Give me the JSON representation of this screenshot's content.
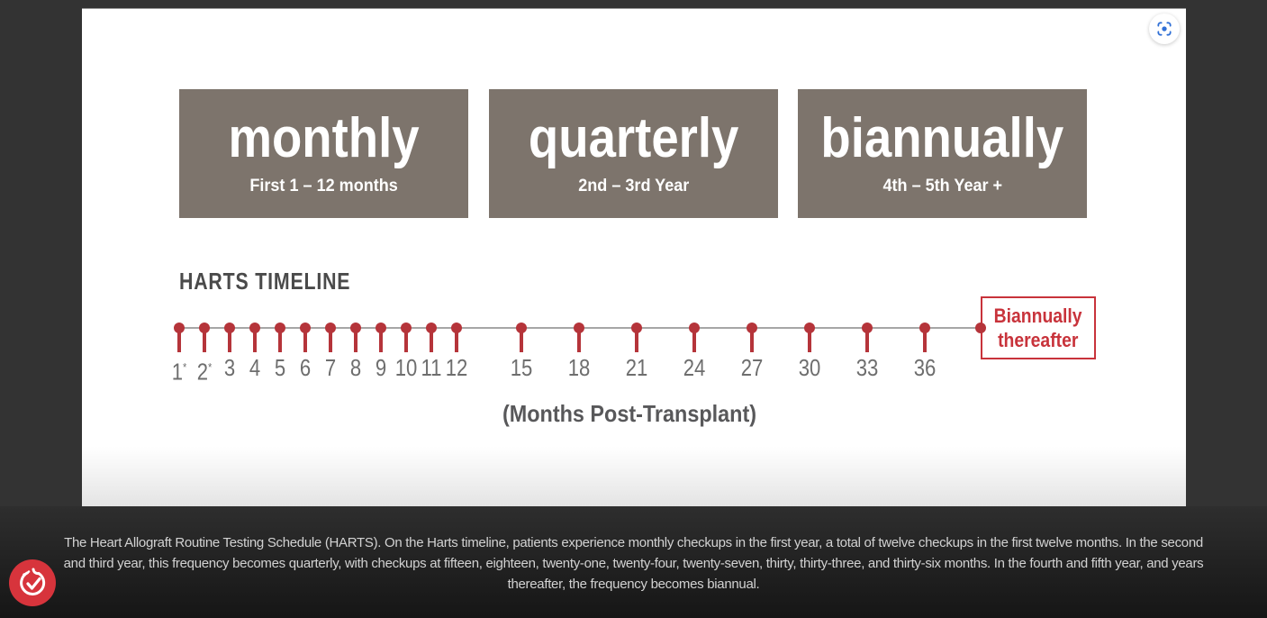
{
  "colors": {
    "page_bg": "#333333",
    "panel_bg": "#ffffff",
    "box_bg": "#7d746c",
    "accent_red": "#b5343a",
    "accent_red_bright": "#c8333b",
    "scan_icon_blue": "#2f6fd6",
    "cookie_badge_red": "#d7343c"
  },
  "frequency_boxes": [
    {
      "title": "monthly",
      "subtitle": "First 1 – 12 months"
    },
    {
      "title": "quarterly",
      "subtitle": "2nd – 3rd Year"
    },
    {
      "title": "biannually",
      "subtitle": "4th – 5th Year +"
    }
  ],
  "timeline": {
    "heading": "HARTS TIMELINE",
    "monthly_points": [
      "1*",
      "2*",
      "3",
      "4",
      "5",
      "6",
      "7",
      "8",
      "9",
      "10",
      "11",
      "12"
    ],
    "quarterly_points": [
      "15",
      "18",
      "21",
      "24",
      "27",
      "30",
      "33",
      "36"
    ],
    "end_label": {
      "line1": "Biannually",
      "line2": "thereafter"
    },
    "axis_label": "(Months Post-Transplant)"
  },
  "caption": {
    "lines": [
      "The Heart Allograft Routine Testing Schedule (HARTS). On the Harts timeline, patients experience monthly checkups in the first year, a total of twelve checkups in the first twelve months. In the second",
      "and third year, this frequency becomes quarterly, with checkups at fifteen, eighteen, twenty-one, twenty-four, twenty-seven, thirty, thirty-three, and thirty-six months. In the fourth and fifth year, and years",
      "thereafter, the frequency becomes biannual."
    ]
  },
  "icons": {
    "scan": "scan-region-icon",
    "cookie": "cookie-check-icon"
  }
}
